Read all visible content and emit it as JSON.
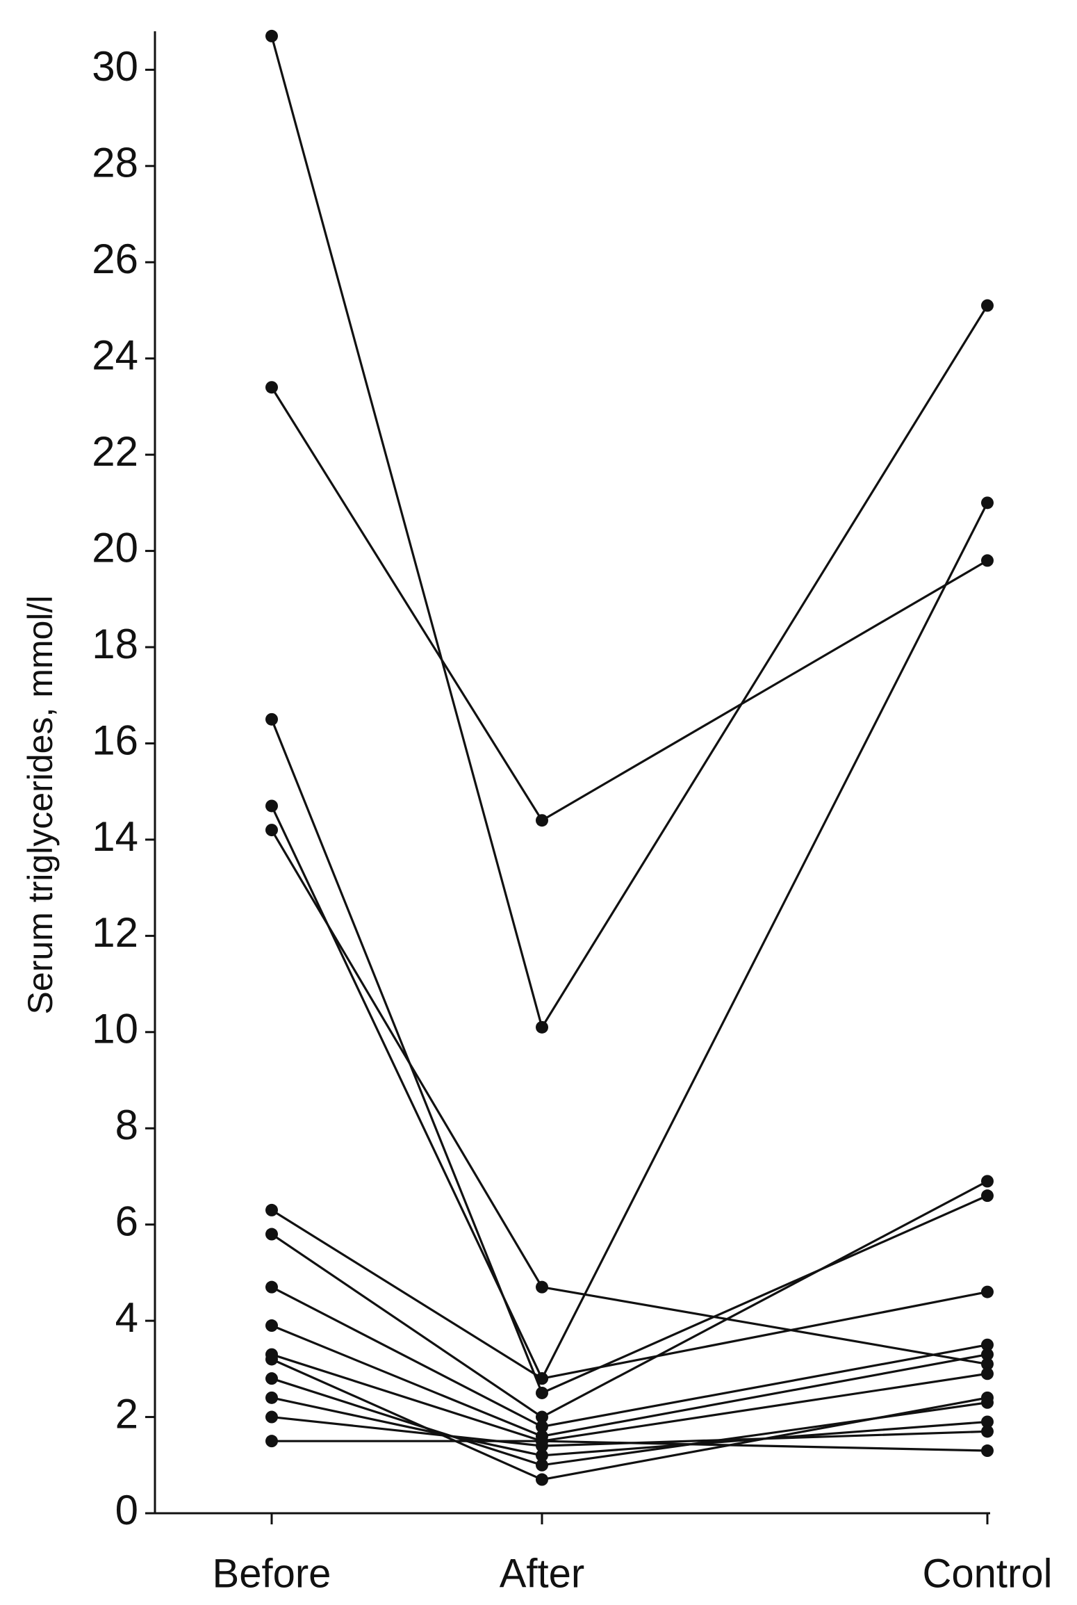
{
  "chart_data": {
    "type": "line",
    "y_label": "Serum triglycerides, mmol/l",
    "categories": [
      "Before",
      "After",
      "Control"
    ],
    "color": "#111111",
    "ylim": [
      0,
      30.8
    ],
    "yticks": [
      0,
      2,
      4,
      6,
      8,
      10,
      12,
      14,
      16,
      18,
      20,
      22,
      24,
      26,
      28,
      30
    ],
    "series": [
      {
        "values": [
          30.7,
          10.1,
          25.1
        ]
      },
      {
        "values": [
          23.4,
          14.4,
          19.8
        ]
      },
      {
        "values": [
          16.5,
          2.5,
          6.6
        ]
      },
      {
        "values": [
          14.7,
          2.8,
          21.0
        ]
      },
      {
        "values": [
          14.2,
          4.7,
          3.1
        ]
      },
      {
        "values": [
          6.3,
          2.8,
          4.6
        ]
      },
      {
        "values": [
          5.8,
          2.0,
          6.9
        ]
      },
      {
        "values": [
          4.7,
          1.8,
          3.5
        ]
      },
      {
        "values": [
          3.9,
          1.6,
          3.3
        ]
      },
      {
        "values": [
          3.3,
          1.5,
          2.9
        ]
      },
      {
        "values": [
          3.2,
          0.7,
          2.4
        ]
      },
      {
        "values": [
          2.8,
          1.0,
          2.3
        ]
      },
      {
        "values": [
          2.4,
          1.2,
          1.9
        ]
      },
      {
        "values": [
          2.0,
          1.4,
          1.7
        ]
      },
      {
        "values": [
          1.5,
          1.5,
          1.3
        ]
      }
    ]
  }
}
